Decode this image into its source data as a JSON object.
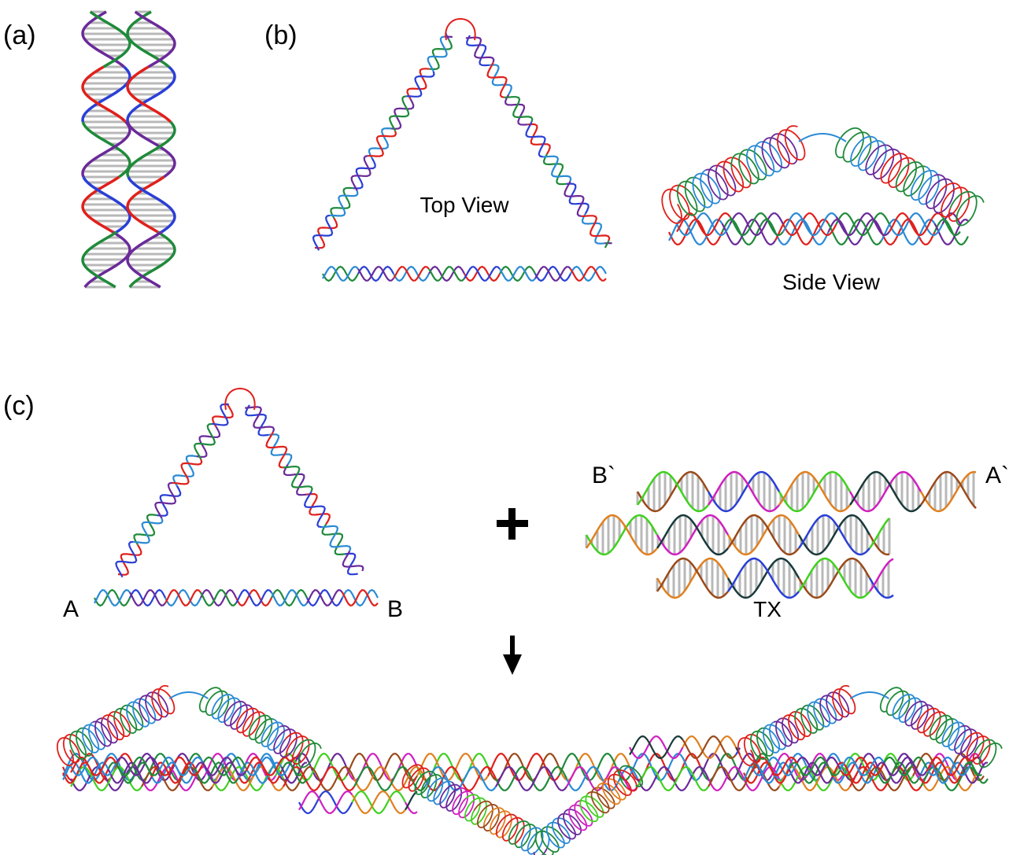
{
  "panels": {
    "a": {
      "label": "(a)"
    },
    "b": {
      "label": "(b)",
      "top_view": "Top View",
      "side_view": "Side View"
    },
    "c": {
      "label": "(c)",
      "end_a": "A",
      "end_b": "B",
      "end_b_prime": "B`",
      "end_a_prime": "A`",
      "tx": "TX"
    }
  }
}
